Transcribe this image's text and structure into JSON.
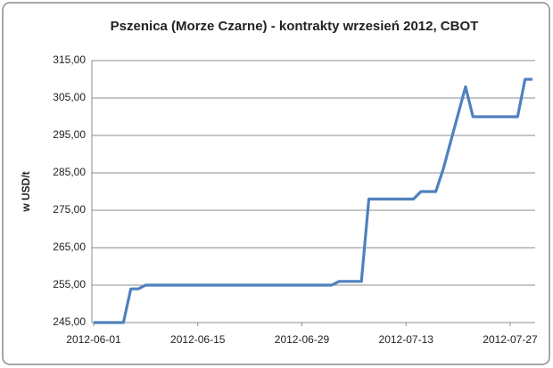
{
  "chart_data": {
    "type": "line",
    "title": "Pszenica (Morze Czarne) - kontrakty wrzesień 2012, CBOT",
    "ylabel": "w USD/t",
    "x": [
      "2012-06-01",
      "2012-06-05",
      "2012-06-06",
      "2012-06-07",
      "2012-06-08",
      "2012-07-03",
      "2012-07-04",
      "2012-07-07",
      "2012-07-08",
      "2012-07-14",
      "2012-07-15",
      "2012-07-17",
      "2012-07-18",
      "2012-07-21",
      "2012-07-22",
      "2012-07-28",
      "2012-07-29",
      "2012-07-30"
    ],
    "values": [
      245,
      245,
      254,
      254,
      255,
      255,
      256,
      256,
      278,
      278,
      280,
      280,
      286,
      308,
      300,
      300,
      310,
      310
    ],
    "color": "#4f81bd",
    "xlim": [
      "2012-06-01",
      "2012-07-30"
    ],
    "xticks": [
      "2012-06-01",
      "2012-06-15",
      "2012-06-29",
      "2012-07-13",
      "2012-07-27"
    ],
    "ylim": [
      245,
      315
    ],
    "yticks": [
      {
        "value": 245,
        "label": "245,00"
      },
      {
        "value": 255,
        "label": "255,00"
      },
      {
        "value": 265,
        "label": "265,00"
      },
      {
        "value": 275,
        "label": "275,00"
      },
      {
        "value": 285,
        "label": "285,00"
      },
      {
        "value": 295,
        "label": "295,00"
      },
      {
        "value": 305,
        "label": "305,00"
      },
      {
        "value": 315,
        "label": "315,00"
      }
    ],
    "grid": true
  }
}
